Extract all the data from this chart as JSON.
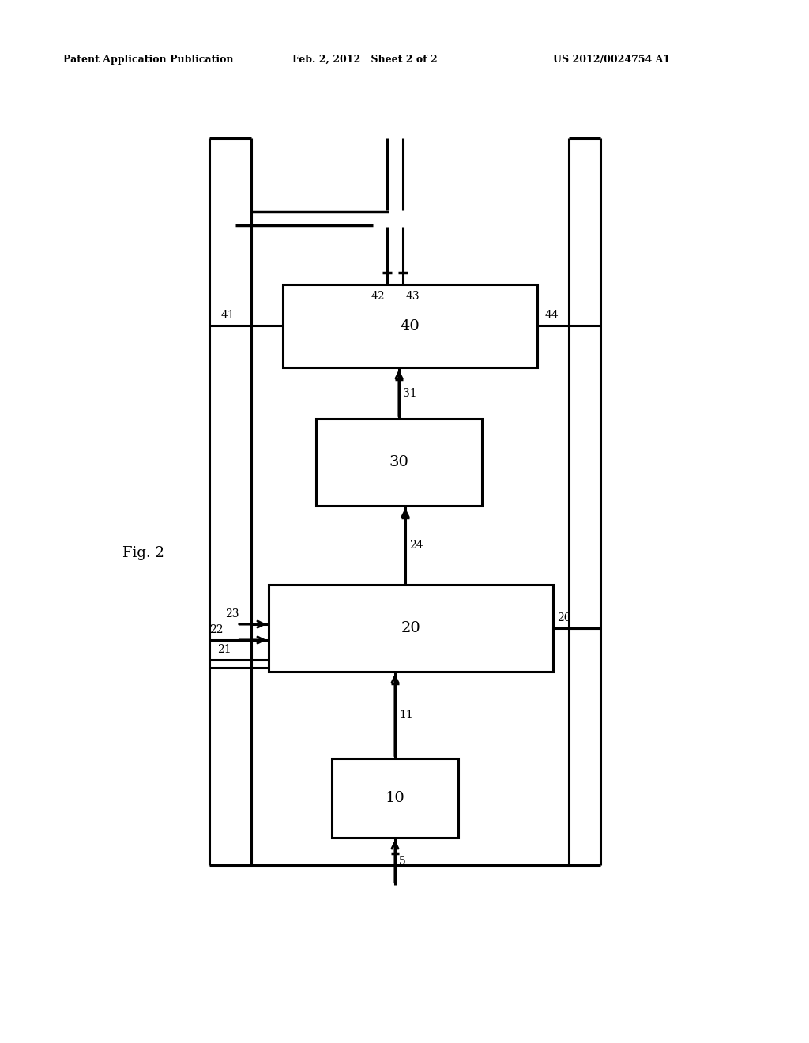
{
  "background_color": "#ffffff",
  "header_left": "Patent Application Publication",
  "header_center": "Feb. 2, 2012   Sheet 2 of 2",
  "header_right": "US 2012/0024754 A1",
  "fig_label": "Fig. 2",
  "line_color": "#000000",
  "line_width": 2.2
}
